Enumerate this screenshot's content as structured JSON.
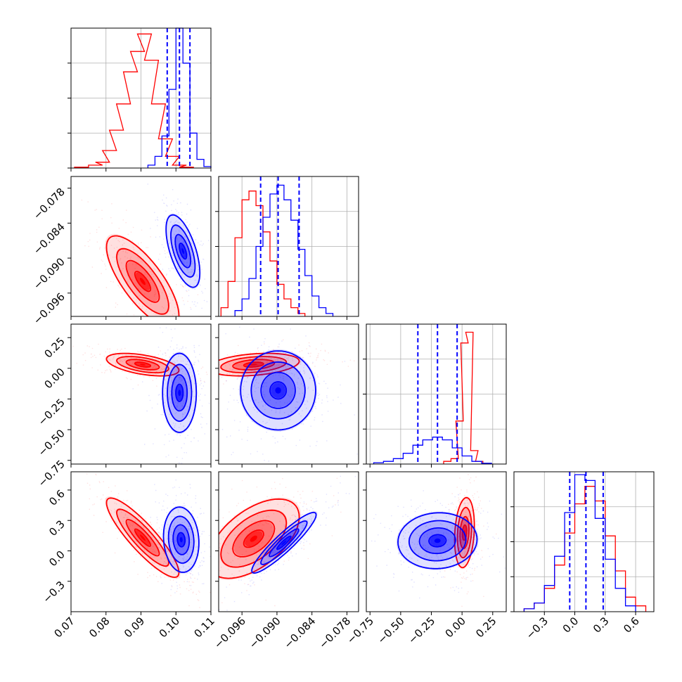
{
  "chart_data": {
    "type": "corner",
    "parameters": 4,
    "colors": {
      "series_a": "#ff0000",
      "series_b": "#0000ff",
      "quantile_line": "#0000ff",
      "grid": "#b0b0b0"
    },
    "grid": true,
    "axes": [
      {
        "range": [
          0.07,
          0.11
        ],
        "ticks": [
          0.07,
          0.08,
          0.09,
          0.1,
          0.11
        ],
        "tick_labels": [
          "0.07",
          "0.08",
          "0.09",
          "0.10",
          "0.11"
        ]
      },
      {
        "range": [
          -0.1,
          -0.076
        ],
        "ticks": [
          -0.096,
          -0.09,
          -0.084,
          -0.078
        ],
        "tick_labels": [
          "−0.096",
          "−0.090",
          "−0.084",
          "−0.078"
        ]
      },
      {
        "range": [
          -0.78,
          0.36
        ],
        "ticks": [
          -0.75,
          -0.5,
          -0.25,
          0.0,
          0.25
        ],
        "tick_labels": [
          "−0.75",
          "−0.50",
          "−0.25",
          "0.00",
          "0.25"
        ]
      },
      {
        "range": [
          -0.6,
          0.78
        ],
        "ticks": [
          -0.3,
          0.0,
          0.3,
          0.6
        ],
        "tick_labels": [
          "−0.3",
          "0.0",
          "0.3",
          "0.6"
        ]
      }
    ],
    "quantiles_series_b": [
      [
        0.0975,
        0.101,
        0.104
      ],
      [
        -0.0928,
        -0.0898,
        -0.0862
      ],
      [
        -0.36,
        -0.2,
        -0.04
      ],
      [
        -0.05,
        0.11,
        0.28
      ]
    ],
    "histograms": [
      {
        "series_a": [
          {
            "x": 0.073,
            "y": 0.3
          },
          {
            "x": 0.077,
            "y": 1
          },
          {
            "x": 0.079,
            "y": 2
          },
          {
            "x": 0.081,
            "y": 6
          },
          {
            "x": 0.083,
            "y": 13
          },
          {
            "x": 0.085,
            "y": 22
          },
          {
            "x": 0.087,
            "y": 33
          },
          {
            "x": 0.089,
            "y": 40
          },
          {
            "x": 0.091,
            "y": 46
          },
          {
            "x": 0.093,
            "y": 37
          },
          {
            "x": 0.095,
            "y": 22
          },
          {
            "x": 0.097,
            "y": 10
          },
          {
            "x": 0.099,
            "y": 4
          },
          {
            "x": 0.101,
            "y": 1
          },
          {
            "x": 0.103,
            "y": 0.3
          }
        ],
        "series_b": [
          {
            "x": 0.093,
            "y": 1
          },
          {
            "x": 0.095,
            "y": 4
          },
          {
            "x": 0.097,
            "y": 11
          },
          {
            "x": 0.099,
            "y": 27
          },
          {
            "x": 0.101,
            "y": 48
          },
          {
            "x": 0.103,
            "y": 36
          },
          {
            "x": 0.105,
            "y": 12
          },
          {
            "x": 0.107,
            "y": 3
          },
          {
            "x": 0.109,
            "y": 0.5
          }
        ],
        "ylim": [
          0,
          48
        ]
      },
      {
        "series_a": [
          {
            "x": -0.099,
            "y": 3
          },
          {
            "x": -0.0978,
            "y": 12
          },
          {
            "x": -0.0966,
            "y": 27
          },
          {
            "x": -0.0954,
            "y": 40
          },
          {
            "x": -0.0942,
            "y": 43
          },
          {
            "x": -0.093,
            "y": 38
          },
          {
            "x": -0.0918,
            "y": 29
          },
          {
            "x": -0.0906,
            "y": 19
          },
          {
            "x": -0.0894,
            "y": 11
          },
          {
            "x": -0.0882,
            "y": 6
          },
          {
            "x": -0.087,
            "y": 3
          },
          {
            "x": -0.0858,
            "y": 1
          }
        ],
        "series_b": [
          {
            "x": -0.0966,
            "y": 2
          },
          {
            "x": -0.0954,
            "y": 6
          },
          {
            "x": -0.0942,
            "y": 13
          },
          {
            "x": -0.093,
            "y": 24
          },
          {
            "x": -0.0918,
            "y": 34
          },
          {
            "x": -0.0906,
            "y": 42
          },
          {
            "x": -0.0894,
            "y": 45
          },
          {
            "x": -0.0882,
            "y": 40
          },
          {
            "x": -0.087,
            "y": 33
          },
          {
            "x": -0.0858,
            "y": 23
          },
          {
            "x": -0.0846,
            "y": 14
          },
          {
            "x": -0.0834,
            "y": 7
          },
          {
            "x": -0.0822,
            "y": 3
          },
          {
            "x": -0.081,
            "y": 1
          }
        ],
        "ylim": [
          0,
          48
        ]
      },
      {
        "series_a": [
          {
            "x": -0.12,
            "y": 1
          },
          {
            "x": -0.06,
            "y": 2
          },
          {
            "x": -0.02,
            "y": 16
          },
          {
            "x": 0.02,
            "y": 45
          },
          {
            "x": 0.06,
            "y": 49
          },
          {
            "x": 0.1,
            "y": 5
          },
          {
            "x": 0.14,
            "y": 1
          }
        ],
        "series_b": [
          {
            "x": -0.68,
            "y": 0.5
          },
          {
            "x": -0.6,
            "y": 1
          },
          {
            "x": -0.52,
            "y": 2
          },
          {
            "x": -0.44,
            "y": 4
          },
          {
            "x": -0.36,
            "y": 7
          },
          {
            "x": -0.28,
            "y": 9
          },
          {
            "x": -0.2,
            "y": 10
          },
          {
            "x": -0.12,
            "y": 9
          },
          {
            "x": -0.04,
            "y": 6
          },
          {
            "x": 0.04,
            "y": 3
          },
          {
            "x": 0.12,
            "y": 1
          },
          {
            "x": 0.2,
            "y": 0.3
          }
        ],
        "ylim": [
          0,
          52
        ]
      },
      {
        "series_a": [
          {
            "x": -0.45,
            "y": 1
          },
          {
            "x": -0.35,
            "y": 3
          },
          {
            "x": -0.25,
            "y": 8
          },
          {
            "x": -0.15,
            "y": 16
          },
          {
            "x": -0.05,
            "y": 27
          },
          {
            "x": 0.05,
            "y": 37
          },
          {
            "x": 0.15,
            "y": 43
          },
          {
            "x": 0.25,
            "y": 38
          },
          {
            "x": 0.35,
            "y": 26
          },
          {
            "x": 0.45,
            "y": 14
          },
          {
            "x": 0.55,
            "y": 5
          },
          {
            "x": 0.65,
            "y": 2
          }
        ],
        "series_b": [
          {
            "x": -0.45,
            "y": 1
          },
          {
            "x": -0.35,
            "y": 3
          },
          {
            "x": -0.25,
            "y": 9
          },
          {
            "x": -0.15,
            "y": 19
          },
          {
            "x": -0.05,
            "y": 34
          },
          {
            "x": 0.05,
            "y": 47
          },
          {
            "x": 0.15,
            "y": 45
          },
          {
            "x": 0.25,
            "y": 32
          },
          {
            "x": 0.35,
            "y": 18
          },
          {
            "x": 0.45,
            "y": 8
          },
          {
            "x": 0.55,
            "y": 2
          }
        ],
        "ylim": [
          0,
          48
        ]
      }
    ],
    "joint": [
      {
        "row": 1,
        "col": 0,
        "series_a": {
          "mean": [
            0.0905,
            -0.094
          ],
          "sd": [
            0.0045,
            0.0034
          ],
          "corr": -0.75
        },
        "series_b": {
          "mean": [
            0.102,
            -0.0888
          ],
          "sd": [
            0.0021,
            0.0027
          ],
          "corr": -0.6
        }
      },
      {
        "row": 2,
        "col": 0,
        "series_a": {
          "mean": [
            0.0905,
            0.03
          ],
          "sd": [
            0.0045,
            0.04
          ],
          "corr": -0.5
        },
        "series_b": {
          "mean": [
            0.101,
            -0.2
          ],
          "sd": [
            0.0021,
            0.14
          ],
          "corr": 0.0
        }
      },
      {
        "row": 2,
        "col": 1,
        "series_a": {
          "mean": [
            -0.094,
            0.03
          ],
          "sd": [
            0.0034,
            0.04
          ],
          "corr": 0.3
        },
        "series_b": {
          "mean": [
            -0.0898,
            -0.18
          ],
          "sd": [
            0.0028,
            0.14
          ],
          "corr": 0.0
        }
      },
      {
        "row": 3,
        "col": 0,
        "series_a": {
          "mean": [
            0.0905,
            0.13
          ],
          "sd": [
            0.0045,
            0.17
          ],
          "corr": -0.88
        },
        "series_b": {
          "mean": [
            0.1015,
            0.11
          ],
          "sd": [
            0.0022,
            0.14
          ],
          "corr": -0.1
        }
      },
      {
        "row": 3,
        "col": 1,
        "series_a": {
          "mean": [
            -0.094,
            0.12
          ],
          "sd": [
            0.0034,
            0.17
          ],
          "corr": 0.55
        },
        "series_b": {
          "mean": [
            -0.0888,
            0.08
          ],
          "sd": [
            0.0024,
            0.13
          ],
          "corr": 0.92
        }
      },
      {
        "row": 3,
        "col": 2,
        "series_a": {
          "mean": [
            0.02,
            0.18
          ],
          "sd": [
            0.035,
            0.15
          ],
          "corr": 0.2
        },
        "series_b": {
          "mean": [
            -0.2,
            0.1
          ],
          "sd": [
            0.14,
            0.12
          ],
          "corr": 0.05
        }
      }
    ]
  }
}
